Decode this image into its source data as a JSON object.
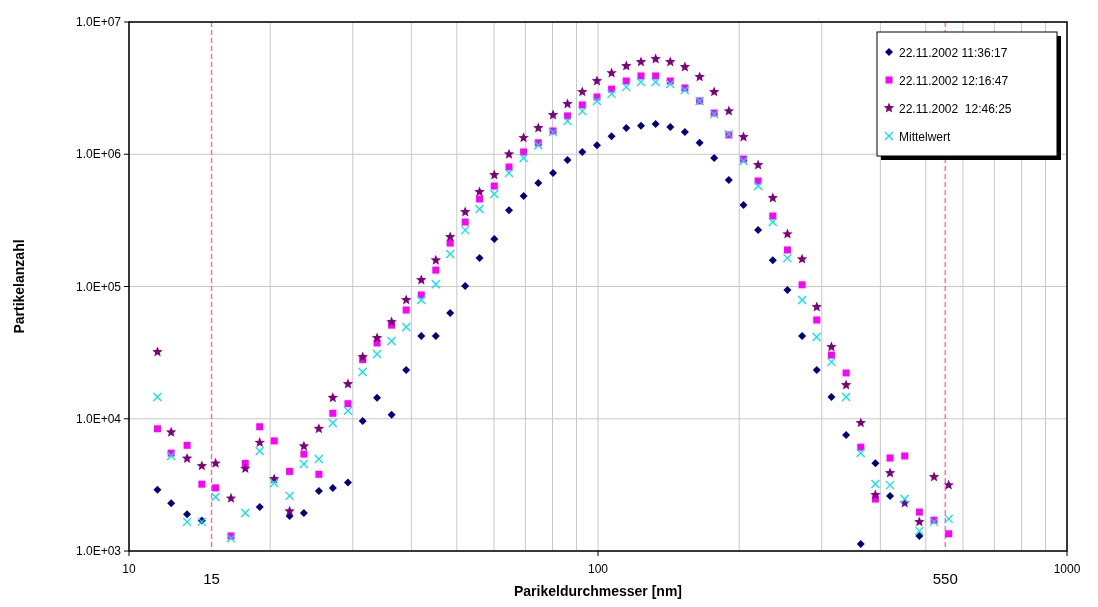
{
  "chart_data": {
    "type": "scatter",
    "xlabel": "Parikeldurchmesser [nm]",
    "ylabel": "Partikelanzahl",
    "log": "xy",
    "grid": true,
    "legend": "top right",
    "x": [
      11.5,
      12.3,
      13.3,
      14.3,
      15.3,
      16.5,
      17.7,
      19.0,
      20.4,
      22.0,
      23.6,
      25.4,
      27.2,
      29.3,
      31.5,
      33.8,
      36.3,
      39.0,
      42.0,
      45.1,
      48.4,
      52.1,
      55.9,
      60.1,
      64.6,
      69.4,
      74.6,
      80.2,
      86.1,
      92.6,
      99.5,
      106.9,
      114.9,
      123.5,
      132.7,
      142.6,
      153.2,
      164.7,
      176.9,
      190.1,
      204.3,
      219.5,
      235.9,
      253.5,
      272.4,
      292.7,
      314.6,
      338.1,
      363.3,
      390.4,
      419.5,
      450.8,
      484.4,
      520.6,
      559.4
    ],
    "xlim": [
      10,
      1000
    ],
    "xticks": [
      10,
      {
        "value": 20,
        "label": null
      },
      {
        "value": 30,
        "label": null
      },
      {
        "value": 40,
        "label": null
      },
      {
        "value": 50,
        "label": null
      },
      {
        "value": 60,
        "label": null
      },
      {
        "value": 70,
        "label": null
      },
      {
        "value": 80,
        "label": null
      },
      {
        "value": 90,
        "label": null
      },
      100,
      {
        "value": 200,
        "label": null
      },
      {
        "value": 300,
        "label": null
      },
      {
        "value": 400,
        "label": null
      },
      {
        "value": 500,
        "label": null
      },
      {
        "value": 600,
        "label": null
      },
      {
        "value": 700,
        "label": null
      },
      {
        "value": 800,
        "label": null
      },
      {
        "value": 900,
        "label": null
      },
      1000
    ],
    "ylim": [
      1000,
      10000000
    ],
    "yticks": [
      {
        "value": 1000,
        "label": "1.0E+03"
      },
      {
        "value": 10000,
        "label": "1.0E+04"
      },
      {
        "value": 100000,
        "label": "1.0E+05"
      },
      {
        "value": 1000000,
        "label": "1.0E+06"
      },
      {
        "value": 10000000,
        "label": "1.0E+07"
      }
    ],
    "ref_lines": [
      {
        "axis": "x",
        "value": 15,
        "label": "15",
        "color": "#ff6699",
        "line_style": "dashed"
      },
      {
        "axis": "x",
        "value": 550,
        "label": "550",
        "color": "#ff6699",
        "line_style": "dashed"
      }
    ],
    "series": [
      {
        "name": "22.11.2002 11:36:17",
        "color": "#000080",
        "marker": "diamond",
        "values": [
          2900,
          2300,
          1900,
          1700,
          null,
          null,
          null,
          2150,
          null,
          1840,
          1940,
          2840,
          3000,
          3300,
          9600,
          14400,
          10700,
          23400,
          42300,
          42300,
          63000,
          101000,
          164000,
          229000,
          378000,
          483000,
          607000,
          721000,
          906000,
          1040000,
          1170000,
          1370000,
          1580000,
          1640000,
          1690000,
          1610000,
          1470000,
          1220000,
          937000,
          638000,
          413000,
          267000,
          158000,
          94200,
          42300,
          23400,
          14600,
          7540,
          1130,
          4600,
          2600,
          null,
          1300,
          null,
          null
        ]
      },
      {
        "name": "22.11.2002 12:16:47",
        "color": "#ff00ff",
        "marker": "square",
        "values": [
          8400,
          5500,
          6300,
          3200,
          3000,
          1300,
          4600,
          8700,
          6800,
          4000,
          5400,
          3800,
          11000,
          13000,
          28000,
          37400,
          51000,
          66400,
          86300,
          133000,
          213000,
          307000,
          459000,
          575000,
          801000,
          1040000,
          1220000,
          1500000,
          1950000,
          2360000,
          2710000,
          3110000,
          3580000,
          3910000,
          3910000,
          3580000,
          3170000,
          2530000,
          2050000,
          1400000,
          920000,
          628000,
          341000,
          189000,
          103000,
          55800,
          30300,
          22200,
          6100,
          2470,
          5050,
          5230,
          1970,
          1710,
          1350
        ]
      },
      {
        "name": "22.11.2002  12:46:25",
        "color": "#800080",
        "marker": "star",
        "values": [
          32000,
          7900,
          5000,
          4400,
          4600,
          2500,
          4200,
          6600,
          3500,
          2000,
          6200,
          8400,
          14400,
          18300,
          29300,
          40800,
          54000,
          79100,
          112000,
          158000,
          237000,
          366000,
          519000,
          697000,
          1000000,
          1330000,
          1580000,
          1980000,
          2400000,
          2960000,
          3580000,
          4110000,
          4650000,
          4990000,
          5250000,
          4990000,
          4570000,
          3840000,
          2960000,
          2120000,
          1350000,
          829000,
          467000,
          249000,
          161000,
          70000,
          34900,
          18000,
          9300,
          2650,
          3890,
          2300,
          1660,
          3630,
          3150
        ]
      },
      {
        "name": "Mittelwert",
        "color": "#00e5ee",
        "marker": "cross",
        "values": [
          14600,
          5230,
          1660,
          1660,
          2560,
          1250,
          1940,
          5700,
          3270,
          2610,
          4550,
          4960,
          9290,
          11500,
          22600,
          30900,
          38700,
          49400,
          79100,
          104000,
          176000,
          267000,
          385000,
          500000,
          721000,
          937000,
          1170000,
          1470000,
          1780000,
          2120000,
          2530000,
          2860000,
          3230000,
          3520000,
          3520000,
          3400000,
          3060000,
          2530000,
          2010000,
          1420000,
          889000,
          575000,
          307000,
          164000,
          79100,
          41500,
          26900,
          14600,
          5510,
          3210,
          3150,
          2470,
          1420,
          1660,
          1750
        ]
      }
    ]
  }
}
